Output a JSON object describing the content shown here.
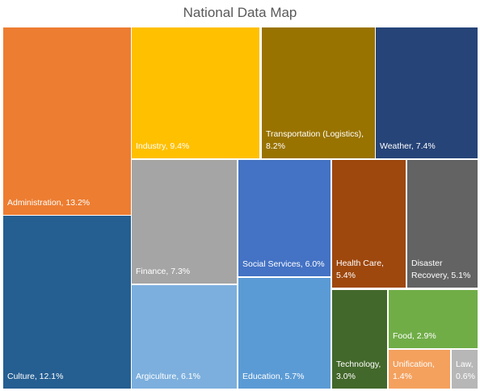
{
  "chart_data": {
    "type": "treemap",
    "title": "National Data Map",
    "items": [
      {
        "name": "Administration",
        "value": 13.2,
        "label_lines": [
          "Administration, 13.2%"
        ],
        "color": "#ED7D31"
      },
      {
        "name": "Culture",
        "value": 12.1,
        "label_lines": [
          "Culture, 12.1%"
        ],
        "color": "#255E91"
      },
      {
        "name": "Industry",
        "value": 9.4,
        "label_lines": [
          "Industry, 9.4%"
        ],
        "color": "#FFC000"
      },
      {
        "name": "Transportation (Logistics)",
        "value": 8.2,
        "label_lines": [
          "Transportation (Logistics),",
          "8.2%"
        ],
        "color": "#997300"
      },
      {
        "name": "Weather",
        "value": 7.4,
        "label_lines": [
          "Weather, 7.4%"
        ],
        "color": "#264478"
      },
      {
        "name": "Finance",
        "value": 7.3,
        "label_lines": [
          "Finance, 7.3%"
        ],
        "color": "#A5A5A5"
      },
      {
        "name": "Argiculture",
        "value": 6.1,
        "label_lines": [
          "Argiculture, 6.1%"
        ],
        "color": "#7CAFDD"
      },
      {
        "name": "Social Services",
        "value": 6.0,
        "label_lines": [
          "Social Services, 6.0%"
        ],
        "color": "#4472C4"
      },
      {
        "name": "Education",
        "value": 5.7,
        "label_lines": [
          "Education, 5.7%"
        ],
        "color": "#5B9BD5"
      },
      {
        "name": "Health Care",
        "value": 5.4,
        "label_lines": [
          "Health Care,",
          "5.4%"
        ],
        "color": "#9E480E"
      },
      {
        "name": "Disaster Recovery",
        "value": 5.1,
        "label_lines": [
          "Disaster",
          "Recovery, 5.1%"
        ],
        "color": "#636363"
      },
      {
        "name": "Technology",
        "value": 3.0,
        "label_lines": [
          "Technology,",
          "3.0%"
        ],
        "color": "#43682B"
      },
      {
        "name": "Food",
        "value": 2.9,
        "label_lines": [
          "Food, 2.9%"
        ],
        "color": "#70AD47"
      },
      {
        "name": "Unification",
        "value": 1.4,
        "label_lines": [
          "Unification,",
          "1.4%"
        ],
        "color": "#F4A15E"
      },
      {
        "name": "Law",
        "value": 0.6,
        "label_lines": [
          "Law,",
          "0.6%"
        ],
        "color": "#B7B7B7"
      }
    ]
  }
}
